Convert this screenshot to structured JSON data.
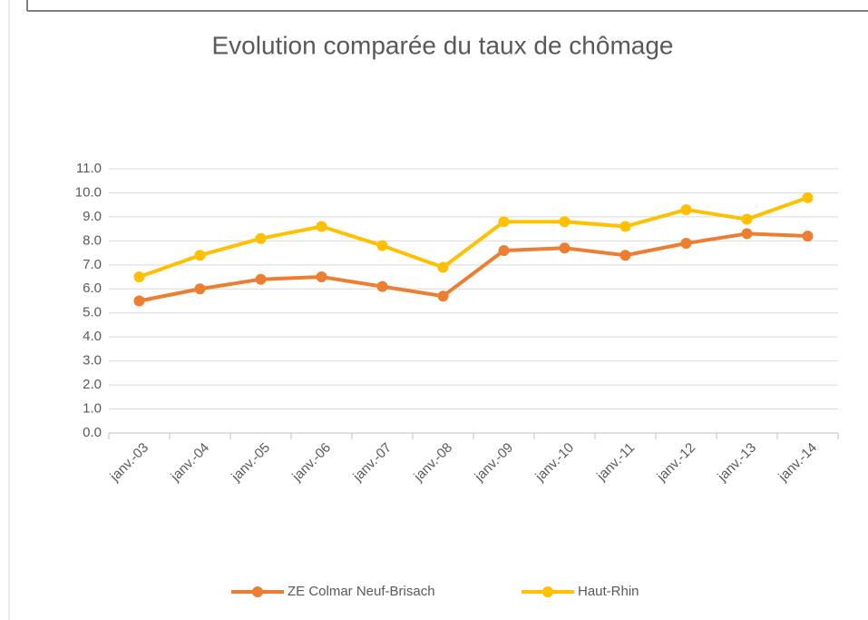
{
  "chart_data": {
    "type": "line",
    "title": "Evolution comparée du taux de chômage",
    "categories": [
      "janv.-03",
      "janv.-04",
      "janv.-05",
      "janv.-06",
      "janv.-07",
      "janv.-08",
      "janv.-09",
      "janv.-10",
      "janv.-11",
      "janv.-12",
      "janv.-13",
      "janv.-14"
    ],
    "series": [
      {
        "name": "ZE Colmar Neuf-Brisach",
        "color": "#ed7d31",
        "values": [
          5.5,
          6.0,
          6.4,
          6.5,
          6.1,
          5.7,
          7.6,
          7.7,
          7.4,
          7.9,
          8.3,
          8.2
        ]
      },
      {
        "name": "Haut-Rhin",
        "color": "#ffc000",
        "values": [
          6.5,
          7.4,
          8.1,
          8.6,
          7.8,
          6.9,
          8.8,
          8.8,
          8.6,
          9.3,
          8.9,
          9.8
        ]
      }
    ],
    "ylim": [
      0,
      11
    ],
    "yticks": [
      {
        "value": 0,
        "label": "0.0"
      },
      {
        "value": 1,
        "label": "1.0"
      },
      {
        "value": 2,
        "label": "2.0"
      },
      {
        "value": 3,
        "label": "3.0"
      },
      {
        "value": 4,
        "label": "4.0"
      },
      {
        "value": 5,
        "label": "5.0"
      },
      {
        "value": 6,
        "label": "6.0"
      },
      {
        "value": 7,
        "label": "7.0"
      },
      {
        "value": 8,
        "label": "8.0"
      },
      {
        "value": 9,
        "label": "9.0"
      },
      {
        "value": 10,
        "label": "10.0"
      },
      {
        "value": 11,
        "label": "11.0"
      }
    ],
    "grid": true,
    "legend": "bottom"
  }
}
